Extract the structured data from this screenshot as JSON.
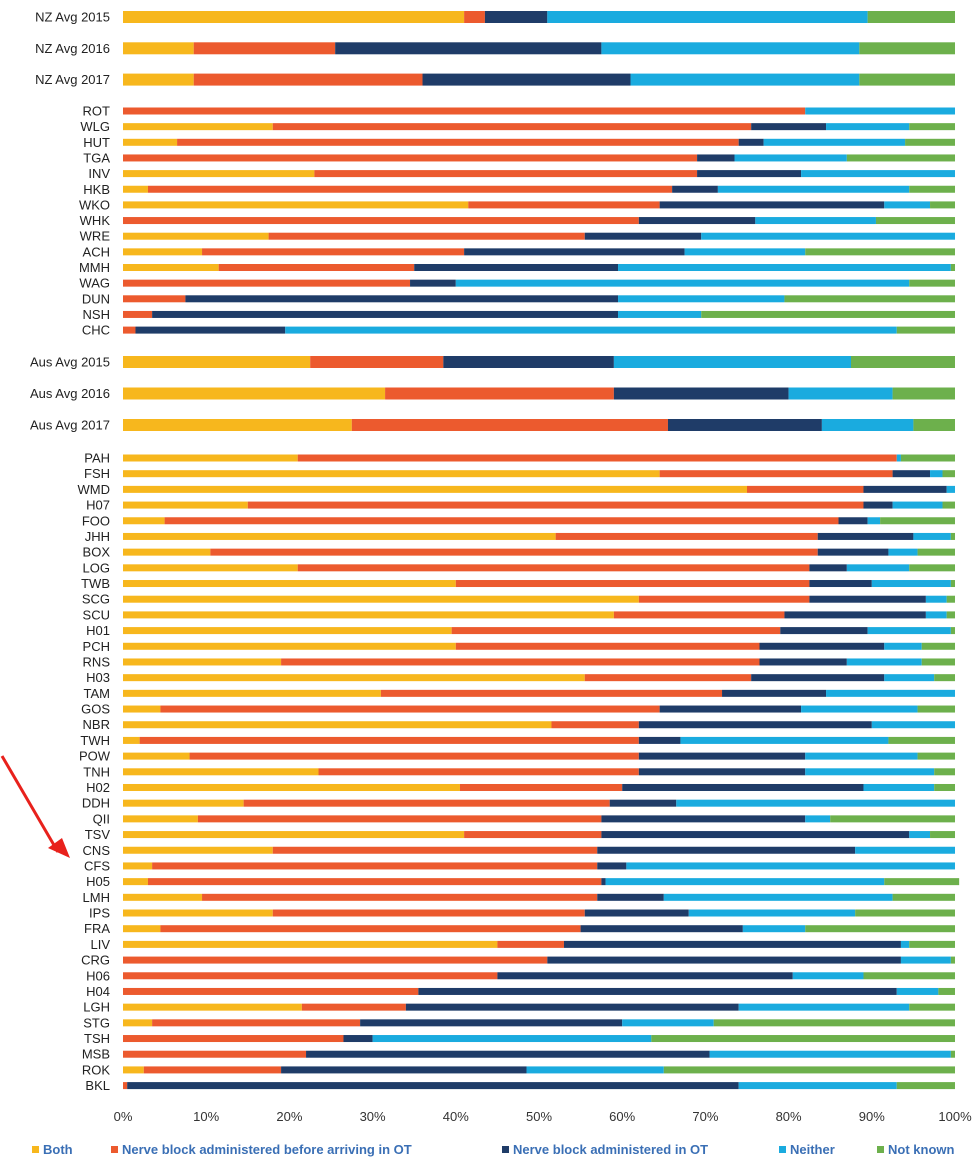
{
  "colors": {
    "both": "#f7b71d",
    "before_ot": "#ec5a2e",
    "in_ot": "#1f3c68",
    "neither": "#1aabdf",
    "not_known": "#6db04c"
  },
  "chart_data": {
    "type": "bar",
    "orientation": "horizontal",
    "stacked": "percent",
    "xlim": [
      0,
      100
    ],
    "x_ticks": [
      "0%",
      "10%",
      "20%",
      "30%",
      "40%",
      "50%",
      "60%",
      "70%",
      "80%",
      "90%",
      "100%"
    ],
    "legend_position": "bottom",
    "grid": false,
    "categories": [
      "NZ Avg 2015",
      "NZ Avg 2016",
      "NZ Avg 2017",
      "ROT",
      "WLG",
      "HUT",
      "TGA",
      "INV",
      "HKB",
      "WKO",
      "WHK",
      "WRE",
      "ACH",
      "MMH",
      "WAG",
      "DUN",
      "NSH",
      "CHC",
      "Aus Avg 2015",
      "Aus Avg 2016",
      "Aus Avg 2017",
      "PAH",
      "FSH",
      "WMD",
      "H07",
      "FOO",
      "JHH",
      "BOX",
      "LOG",
      "TWB",
      "SCG",
      "SCU",
      "H01",
      "PCH",
      "RNS",
      "H03",
      "TAM",
      "GOS",
      "NBR",
      "TWH",
      "POW",
      "TNH",
      "H02",
      "DDH",
      "QII",
      "TSV",
      "CNS",
      "CFS",
      "H05",
      "LMH",
      "IPS",
      "FRA",
      "LIV",
      "CRG",
      "H06",
      "H04",
      "LGH",
      "STG",
      "TSH",
      "MSB",
      "ROK",
      "BKL"
    ],
    "series": [
      {
        "name": "Both",
        "values": [
          41,
          8.5,
          8.5,
          0,
          18,
          6.5,
          0,
          23,
          3,
          41.5,
          0,
          17.5,
          9.5,
          11.5,
          0,
          0,
          0,
          0,
          22.5,
          31.5,
          27.5,
          21,
          64.5,
          75,
          15,
          5,
          52,
          10.5,
          21,
          40,
          62,
          59,
          39.5,
          40,
          19,
          55.5,
          31,
          4.5,
          51.5,
          2,
          8,
          23.5,
          40.5,
          14.5,
          9,
          41,
          18,
          3.5,
          3,
          9.5,
          18,
          4.5,
          45,
          0,
          0,
          0,
          21.5,
          3.5,
          0,
          0,
          2.5,
          0
        ]
      },
      {
        "name": "Nerve block administered before arriving in OT",
        "values": [
          2.5,
          17,
          27.5,
          82,
          57.5,
          67.5,
          69,
          46,
          63,
          23,
          62,
          38,
          31.5,
          23.5,
          34.5,
          7.5,
          3.5,
          1.5,
          16,
          27.5,
          38,
          72,
          28,
          14,
          74,
          81,
          31.5,
          73,
          61.5,
          42.5,
          20.5,
          20.5,
          39.5,
          36.5,
          57.5,
          20,
          41,
          60,
          10.5,
          60,
          54,
          38.5,
          19.5,
          44,
          48.5,
          16.5,
          39,
          53.5,
          54.5,
          47.5,
          37.5,
          50.5,
          8,
          51,
          45,
          35.5,
          12.5,
          25,
          26.5,
          22,
          16.5,
          0.5
        ]
      },
      {
        "name": "Nerve block administered in OT",
        "values": [
          7.5,
          32,
          25,
          0,
          9,
          3,
          4.5,
          12.5,
          5.5,
          27,
          14,
          14,
          26.5,
          24.5,
          5.5,
          52,
          56,
          18,
          20.5,
          21,
          18.5,
          0,
          4.5,
          10,
          3.5,
          3.5,
          11.5,
          8.5,
          4.5,
          7.5,
          14,
          17,
          10.5,
          15,
          10.5,
          16,
          12.5,
          17,
          28,
          5,
          20,
          20,
          29,
          8,
          24.5,
          37,
          31,
          3.5,
          0.5,
          8,
          12.5,
          19.5,
          40.5,
          42.5,
          35.5,
          57.5,
          40,
          31.5,
          3.5,
          48.5,
          29.5,
          73.5
        ]
      },
      {
        "name": "Neither",
        "values": [
          38.5,
          31,
          27.5,
          18,
          10,
          17,
          13.5,
          18.5,
          23,
          5.5,
          14.5,
          30.5,
          14.5,
          40,
          54.5,
          20,
          10,
          73.5,
          28.5,
          12.5,
          11,
          0.5,
          1.5,
          1,
          6,
          1.5,
          4.5,
          3.5,
          7.5,
          9.5,
          2.5,
          2.5,
          10,
          4.5,
          9,
          6,
          15.5,
          14,
          10,
          25,
          13.5,
          15.5,
          8.5,
          33.5,
          3,
          2.5,
          12,
          39.5,
          33.5,
          27.5,
          20,
          7.5,
          1,
          6,
          8.5,
          5,
          20.5,
          11,
          33.5,
          29,
          16.5,
          19
        ]
      },
      {
        "name": "Not known",
        "values": [
          10.5,
          11.5,
          11.5,
          0,
          5.5,
          6,
          13,
          0,
          5.5,
          3,
          9.5,
          0,
          18,
          0.5,
          5.5,
          20.5,
          30.5,
          7,
          12.5,
          7.5,
          5,
          6.5,
          1.5,
          0,
          1.5,
          9,
          0.5,
          4.5,
          5.5,
          0.5,
          1,
          1,
          0.5,
          4,
          4,
          2.5,
          0,
          4.5,
          0,
          8,
          4.5,
          2.5,
          2.5,
          0,
          15,
          3,
          0,
          0,
          9,
          7.5,
          12,
          18,
          5.5,
          0.5,
          11,
          2,
          5.5,
          29,
          36.5,
          0.5,
          35,
          7
        ]
      }
    ]
  }
}
